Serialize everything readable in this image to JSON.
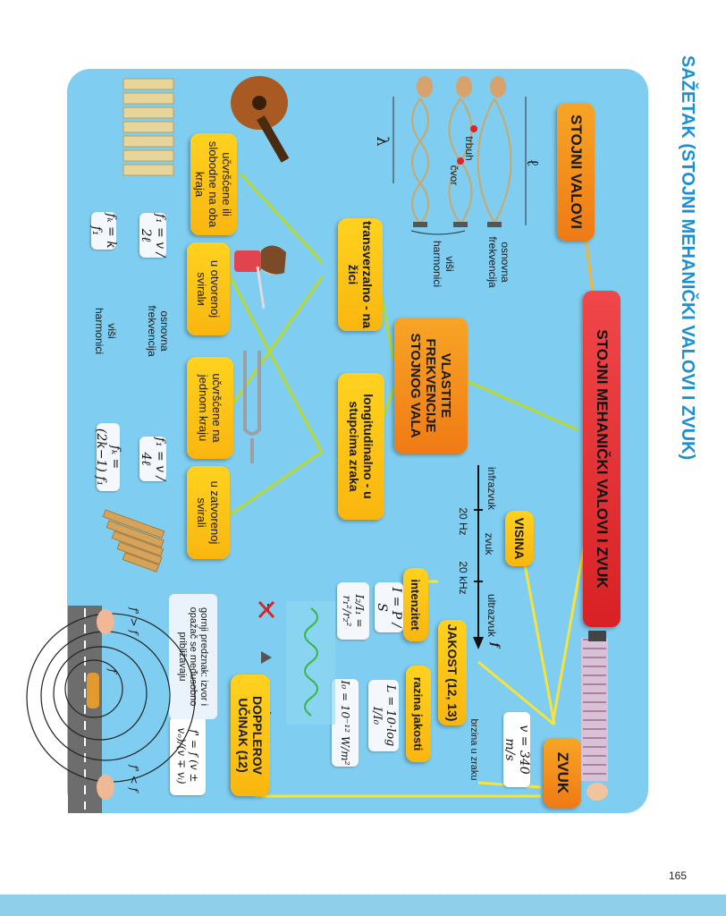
{
  "page": {
    "title": "SAŽETAK (STOJNI MEHANIČKI VALOVI I ZVUK)",
    "page_number": "165"
  },
  "nodes": {
    "main": "STOJNI MEHANIČKI VALOVI I ZVUK",
    "stojni_valovi": "STOJNI VALOVI",
    "vlastite_frekvencije": "VLASTITE FREKVENCIJE STOJNOG VALA",
    "transverzalno": "transverzalno - na žici",
    "longitudinalno": "longitudinalno - u stupcima zraka",
    "ucvrscene_oba": "učvršćene ili slobodne na oba kraja",
    "otvorena_svirala": "u otvorenoj sviralи",
    "ucvrscene_jednom": "učvršćene na jednom kraju",
    "zatvorena_svirala": "u zatvorenoj svirali",
    "zvuk": "ZVUK",
    "visina": "VISINA",
    "jakost": "JAKOST (12, 13)",
    "intenzitet": "intenzitet",
    "razina_jakosti": "razina jakosti",
    "doppler": "DOPPLEROV UČINAK (12)"
  },
  "labels": {
    "osnovna_frekvencija": "osnovna frekvencija",
    "visi_harmonici": "viši harmonici",
    "trbuh": "trbuh",
    "cvor": "čvor",
    "lambda": "λ",
    "ell": "ℓ",
    "brzina_u_zraku": "brzina u zraku",
    "infrazvuk": "infrazvuk",
    "zvuk_small": "zvuk",
    "ultrazvuk": "ultrazvuk",
    "hz20": "20 Hz",
    "khz20": "20 kHz",
    "f_axis": "f",
    "doppler_note": "gornji predznak: izvor i opažač se međusobno približavaju",
    "f_gt": "f' > f",
    "f_lt": "f' < f",
    "f_car": "f"
  },
  "formulas": {
    "v_air": "v = 340 m/s",
    "f1_string": "f₁ = v / 2ℓ",
    "fk_string": "fₖ = k f₁",
    "f1_closed": "f₁ = v / 4ℓ",
    "fk_closed": "fₖ = (2k−1) f₁",
    "intensity": "I = P / S",
    "intensity_ratio": "I₂/I₁ = r₁²/r₂²",
    "level": "L = 10·log I/I₀",
    "i0": "I₀ = 10⁻¹² W/m²",
    "doppler": "f' = f (v ± vₒ)/(v ∓ vᵢ)"
  },
  "colors": {
    "panel": "#7fcdf0",
    "line": "#b7d932",
    "title": "#1a8fd1",
    "orange": "#f39219",
    "yellow": "#ffd21f"
  }
}
